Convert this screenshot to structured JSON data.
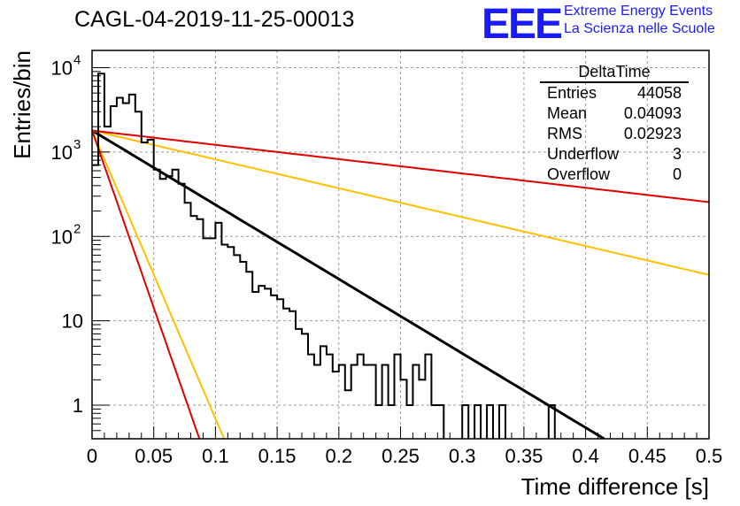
{
  "title": "CAGL-04-2019-11-25-00013",
  "logo": {
    "text": "EEE",
    "line1": "Extreme Energy Events",
    "line2": "La Scienza nelle Scuole",
    "color": "#1a1aff"
  },
  "stats_box": {
    "title": "DeltaTime",
    "rows": [
      {
        "label": "Entries",
        "value": "44058"
      },
      {
        "label": "Mean",
        "value": "0.04093"
      },
      {
        "label": "RMS",
        "value": "0.02923"
      },
      {
        "label": "Underflow",
        "value": "3"
      },
      {
        "label": "Overflow",
        "value": "0"
      }
    ]
  },
  "chart_data": {
    "type": "line",
    "xlabel": "Time difference [s]",
    "ylabel": "Entries/bin",
    "xlim": [
      0,
      0.5
    ],
    "ylim": [
      0.4,
      16000
    ],
    "yscale": "log",
    "grid": true,
    "x_ticks": [
      "0",
      "0.05",
      "0.1",
      "0.15",
      "0.2",
      "0.25",
      "0.3",
      "0.35",
      "0.4",
      "0.45",
      "0.5"
    ],
    "y_ticks": [
      {
        "value": 1,
        "label": "1"
      },
      {
        "value": 10,
        "label": "10"
      },
      {
        "value": 100,
        "label": "10",
        "exp": "2"
      },
      {
        "value": 1000,
        "label": "10",
        "exp": "3"
      },
      {
        "value": 10000,
        "label": "10",
        "exp": "4"
      }
    ],
    "histogram": {
      "color": "#000000",
      "bin_width": 0.005,
      "x_start": 0.0,
      "values": [
        700,
        8500,
        2000,
        3500,
        4400,
        3800,
        4800,
        3000,
        1300,
        1400,
        620,
        480,
        520,
        620,
        420,
        250,
        175,
        160,
        95,
        95,
        145,
        80,
        75,
        60,
        50,
        38,
        22,
        26,
        24,
        20,
        18,
        14,
        13,
        8,
        7,
        4,
        3,
        5,
        4,
        2.5,
        3,
        1.5,
        3,
        4,
        3,
        3,
        1,
        3,
        1,
        4,
        2,
        1,
        3,
        2,
        4,
        1,
        1,
        0,
        0,
        0,
        1,
        0,
        1,
        0,
        1,
        0,
        1,
        0,
        0,
        0,
        0,
        0,
        0,
        0,
        1,
        0,
        0,
        0,
        0,
        0,
        0,
        0,
        0,
        0,
        0,
        0,
        0,
        0,
        0,
        0,
        0,
        0,
        0,
        0,
        0,
        0,
        0,
        0,
        0,
        0
      ]
    },
    "fit_lines": [
      {
        "color": "#000000",
        "width": 3,
        "x": [
          0,
          0.415
        ],
        "y": [
          1800,
          0.4
        ]
      },
      {
        "color": "#ffc000",
        "width": 2,
        "x": [
          0,
          0.5
        ],
        "y": [
          1800,
          35
        ]
      },
      {
        "color": "#e00000",
        "width": 2,
        "x": [
          0,
          0.5
        ],
        "y": [
          1800,
          255
        ]
      },
      {
        "color": "#ffc000",
        "width": 2,
        "x": [
          0,
          0.107
        ],
        "y": [
          1800,
          0.4
        ]
      },
      {
        "color": "#e00000",
        "width": 2,
        "x": [
          0,
          0.087
        ],
        "y": [
          1800,
          0.4
        ]
      }
    ]
  }
}
